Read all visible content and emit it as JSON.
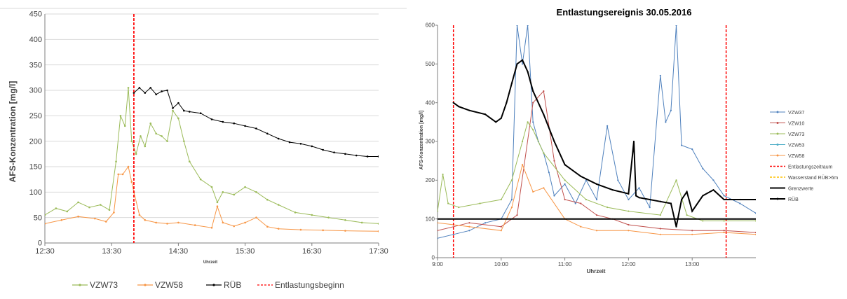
{
  "colors": {
    "VZW73": "#9bbb59",
    "VZW58": "#f79646",
    "RUEB": "#000000",
    "red": "#ff0000",
    "VZW37": "#4f81bd",
    "VZW10": "#c0504d",
    "VZW53": "#4bacc6",
    "yellow": "#ffc000",
    "grid": "#d9d9d9",
    "axis": "#7f7f7f"
  },
  "chart_data": [
    {
      "type": "line",
      "title": "",
      "xlabel": "Uhrzeit",
      "ylabel": "AFS-Konzentration [mg/l]",
      "x_unit": "clock time (minutes since 00:00 shown as HH:MM ticks)",
      "x_ticks": [
        "12:30",
        "13:30",
        "14:30",
        "15:30",
        "16:30",
        "17:30"
      ],
      "y_ticks": [
        "0",
        "50",
        "100",
        "150",
        "200",
        "250",
        "300",
        "350",
        "400",
        "450"
      ],
      "xlim": [
        "12:30",
        "17:30"
      ],
      "ylim": [
        0,
        450
      ],
      "grid": true,
      "legend_position": "bottom",
      "series": [
        {
          "name": "VZW73",
          "color": "#9bbb59",
          "x": [
            "12:30",
            "12:40",
            "12:50",
            "13:00",
            "13:10",
            "13:20",
            "13:28",
            "13:34",
            "13:38",
            "13:42",
            "13:45",
            "13:48",
            "13:52",
            "13:56",
            "14:00",
            "14:05",
            "14:10",
            "14:15",
            "14:20",
            "14:25",
            "14:30",
            "14:35",
            "14:40",
            "14:50",
            "15:00",
            "15:05",
            "15:10",
            "15:20",
            "15:30",
            "15:40",
            "15:50",
            "16:00",
            "16:15",
            "16:30",
            "16:45",
            "17:00",
            "17:15",
            "17:30"
          ],
          "y": [
            55,
            68,
            62,
            80,
            70,
            75,
            65,
            160,
            250,
            230,
            305,
            200,
            175,
            210,
            190,
            235,
            215,
            210,
            200,
            260,
            245,
            200,
            160,
            125,
            110,
            80,
            100,
            95,
            110,
            100,
            85,
            75,
            60,
            55,
            50,
            45,
            40,
            38
          ]
        },
        {
          "name": "VZW58",
          "color": "#f79646",
          "x": [
            "12:30",
            "12:45",
            "13:00",
            "13:15",
            "13:25",
            "13:32",
            "13:36",
            "13:40",
            "13:45",
            "13:48",
            "13:50",
            "13:55",
            "14:00",
            "14:10",
            "14:20",
            "14:30",
            "14:45",
            "15:00",
            "15:05",
            "15:10",
            "15:20",
            "15:30",
            "15:40",
            "15:50",
            "16:00",
            "16:20",
            "16:40",
            "17:00",
            "17:30"
          ],
          "y": [
            38,
            45,
            52,
            48,
            42,
            60,
            135,
            135,
            150,
            120,
            100,
            55,
            45,
            40,
            38,
            40,
            35,
            30,
            72,
            40,
            33,
            40,
            50,
            32,
            28,
            26,
            25,
            24,
            23
          ]
        },
        {
          "name": "RÜB",
          "color": "#000000",
          "x": [
            "13:50",
            "13:55",
            "14:00",
            "14:05",
            "14:10",
            "14:15",
            "14:20",
            "14:25",
            "14:30",
            "14:35",
            "14:40",
            "14:50",
            "15:00",
            "15:10",
            "15:20",
            "15:30",
            "15:40",
            "15:50",
            "16:00",
            "16:10",
            "16:20",
            "16:30",
            "16:40",
            "16:50",
            "17:00",
            "17:10",
            "17:20",
            "17:30"
          ],
          "y": [
            295,
            305,
            295,
            305,
            292,
            298,
            300,
            265,
            275,
            260,
            258,
            255,
            243,
            238,
            235,
            230,
            225,
            215,
            205,
            198,
            195,
            190,
            183,
            178,
            175,
            172,
            170,
            170
          ]
        },
        {
          "name": "Entlastungsbeginn",
          "color": "#ff0000",
          "dashed": true,
          "x": [
            "13:50",
            "13:50"
          ],
          "y": [
            0,
            450
          ]
        }
      ]
    },
    {
      "type": "line",
      "title": "Entlastungsereignis 30.05.2016",
      "xlabel": "Uhrzeit",
      "ylabel": "AFS-Konzentration [mg/l]",
      "x_ticks": [
        "9:00",
        "10:00",
        "11:00",
        "12:00",
        "13:00"
      ],
      "y_ticks": [
        "0",
        "100",
        "200",
        "300",
        "400",
        "500",
        "600"
      ],
      "xlim": [
        "9:00",
        "14:00"
      ],
      "ylim": [
        0,
        600
      ],
      "grid": false,
      "legend_position": "right",
      "series": [
        {
          "name": "VZW37",
          "color": "#4f81bd",
          "x": [
            "9:00",
            "9:15",
            "9:30",
            "9:45",
            "10:00",
            "10:10",
            "10:15",
            "10:20",
            "10:25",
            "10:30",
            "10:35",
            "10:40",
            "10:45",
            "10:50",
            "11:00",
            "11:10",
            "11:20",
            "11:30",
            "11:40",
            "11:50",
            "12:00",
            "12:10",
            "12:20",
            "12:30",
            "12:35",
            "12:40",
            "12:45",
            "12:50",
            "13:00",
            "13:10",
            "13:20",
            "13:30",
            "13:45",
            "14:00"
          ],
          "y": [
            50,
            60,
            70,
            90,
            100,
            150,
            600,
            500,
            600,
            350,
            300,
            270,
            220,
            160,
            190,
            140,
            200,
            150,
            340,
            200,
            150,
            180,
            130,
            470,
            350,
            380,
            600,
            290,
            280,
            230,
            200,
            160,
            140,
            115
          ]
        },
        {
          "name": "VZW10",
          "color": "#c0504d",
          "x": [
            "9:00",
            "9:30",
            "10:00",
            "10:15",
            "10:30",
            "10:40",
            "10:50",
            "11:00",
            "11:15",
            "11:30",
            "11:45",
            "12:00",
            "12:30",
            "13:00",
            "13:30",
            "14:00"
          ],
          "y": [
            70,
            90,
            80,
            110,
            400,
            430,
            250,
            150,
            140,
            110,
            100,
            85,
            75,
            70,
            70,
            65
          ]
        },
        {
          "name": "VZW73",
          "color": "#9bbb59",
          "x": [
            "9:00",
            "9:05",
            "9:10",
            "9:20",
            "9:40",
            "10:00",
            "10:10",
            "10:20",
            "10:25",
            "10:30",
            "10:40",
            "11:00",
            "11:20",
            "11:40",
            "12:00",
            "12:30",
            "12:45",
            "12:55",
            "13:10",
            "13:30",
            "14:00"
          ],
          "y": [
            120,
            215,
            140,
            130,
            140,
            150,
            200,
            300,
            350,
            330,
            270,
            200,
            150,
            130,
            120,
            110,
            200,
            110,
            95,
            95,
            95
          ]
        },
        {
          "name": "VZW53",
          "color": "#4bacc6",
          "x": [],
          "y": []
        },
        {
          "name": "VZW58",
          "color": "#f79646",
          "x": [
            "9:00",
            "9:30",
            "10:00",
            "10:10",
            "10:20",
            "10:30",
            "10:40",
            "11:00",
            "11:15",
            "11:30",
            "12:00",
            "12:30",
            "13:00",
            "13:30",
            "14:00"
          ],
          "y": [
            90,
            80,
            70,
            130,
            240,
            170,
            180,
            100,
            80,
            70,
            70,
            60,
            60,
            65,
            60
          ]
        },
        {
          "name": "Entlastungszeitraum",
          "color": "#ff0000",
          "dashed": true,
          "x": [
            "9:15",
            "13:32"
          ],
          "y": [
            0,
            600
          ]
        },
        {
          "name": "Wasserstand RÜB>6m",
          "color": "#ffc000",
          "dashed": true,
          "x": [],
          "y": []
        },
        {
          "name": "Grenzwerte",
          "color": "#000000",
          "x": [
            "9:00",
            "14:00"
          ],
          "y": [
            100,
            100
          ]
        },
        {
          "name": "RÜB",
          "color": "#000000",
          "x": [
            "9:15",
            "9:20",
            "9:30",
            "9:45",
            "9:55",
            "10:00",
            "10:05",
            "10:10",
            "10:15",
            "10:20",
            "10:25",
            "10:30",
            "10:40",
            "10:50",
            "11:00",
            "11:15",
            "11:30",
            "11:45",
            "12:00",
            "12:05",
            "12:07",
            "12:10",
            "12:20",
            "12:30",
            "12:40",
            "12:45",
            "12:50",
            "12:55",
            "13:00",
            "13:10",
            "13:20",
            "13:30",
            "13:45",
            "14:00"
          ],
          "y": [
            400,
            390,
            380,
            370,
            350,
            360,
            400,
            450,
            500,
            510,
            480,
            430,
            370,
            300,
            240,
            210,
            190,
            175,
            165,
            300,
            160,
            155,
            150,
            145,
            140,
            80,
            150,
            170,
            120,
            160,
            175,
            150,
            150,
            150
          ]
        }
      ]
    }
  ],
  "left_legend": {
    "items": [
      {
        "label": "VZW73"
      },
      {
        "label": "VZW58"
      },
      {
        "label": "RÜB"
      },
      {
        "label": "Entlastungsbeginn"
      }
    ]
  },
  "right_legend": {
    "items": [
      {
        "label": "VZW37"
      },
      {
        "label": "VZW10"
      },
      {
        "label": "VZW73"
      },
      {
        "label": "VZW53"
      },
      {
        "label": "VZW58"
      },
      {
        "label": "Entlastungszeitraum"
      },
      {
        "label": "Wasserstand RÜB>6m"
      },
      {
        "label": "Grenzwerte"
      },
      {
        "label": "RÜB"
      }
    ]
  }
}
